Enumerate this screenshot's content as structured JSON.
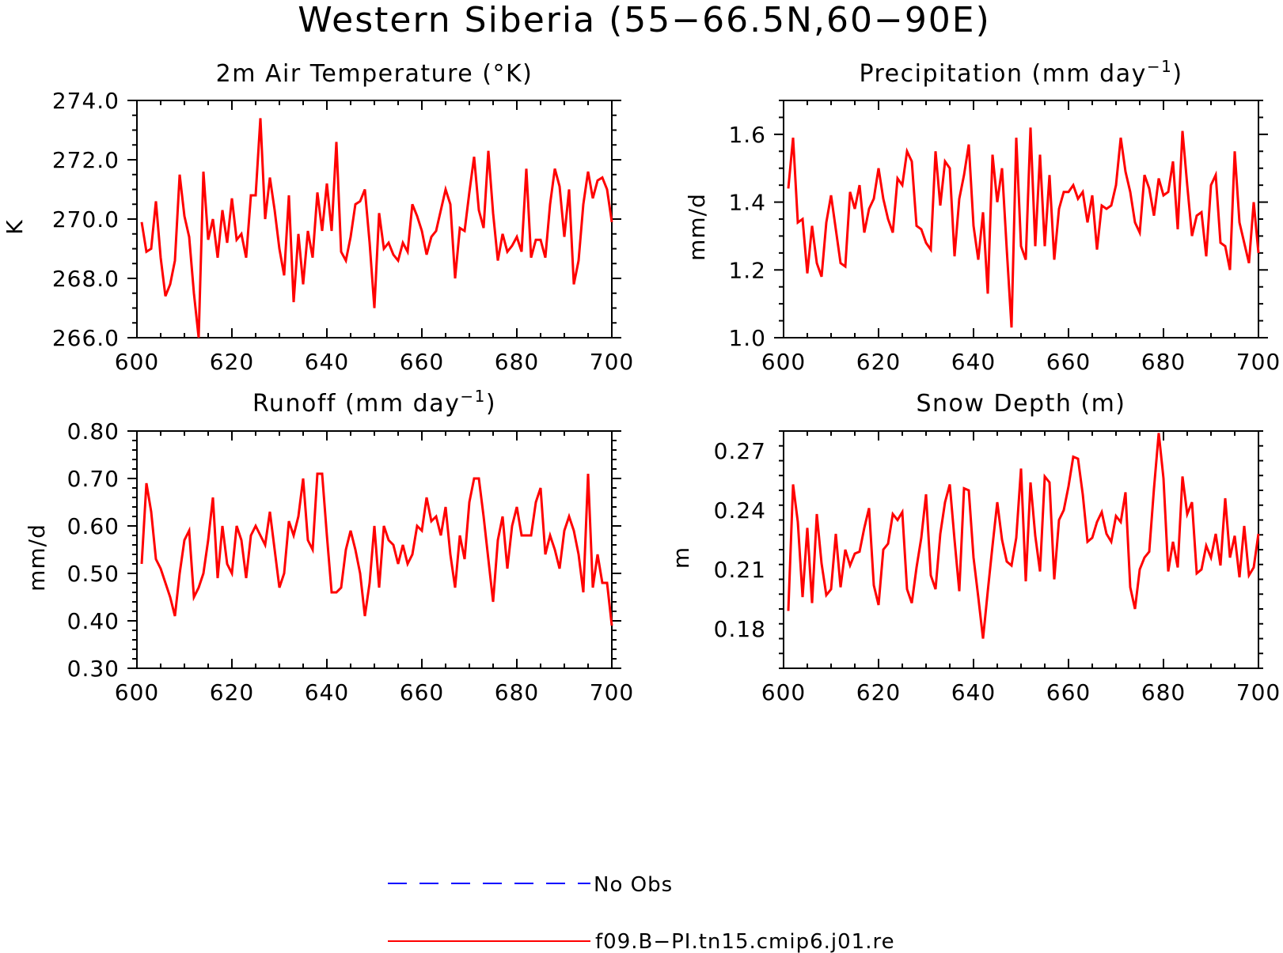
{
  "figure": {
    "title": "Western Siberia (55−66.5N,60−90E)"
  },
  "legend": [
    {
      "label": "No Obs",
      "color": "#0000ff",
      "style": "dashed"
    },
    {
      "label": "f09.B−PI.tn15.cmip6.j01.re",
      "color": "#ff0000",
      "style": "solid"
    }
  ],
  "chart_data": [
    {
      "type": "line",
      "title": "2m Air Temperature (°K)",
      "ylabel": "K",
      "xlabel": "",
      "xlim": [
        600,
        700
      ],
      "ylim": [
        266,
        274
      ],
      "xticks": [
        "600",
        "620",
        "640",
        "660",
        "680",
        "700"
      ],
      "yticks": [
        "266.0",
        "268.0",
        "270.0",
        "272.0",
        "274.0"
      ],
      "x_start": 601,
      "series": [
        {
          "name": "f09.B−PI.tn15.cmip6.j01.re",
          "color": "#ff0000",
          "values": [
            269.9,
            268.9,
            269.0,
            270.6,
            268.7,
            267.4,
            267.8,
            268.6,
            271.5,
            270.1,
            269.4,
            267.5,
            266.0,
            271.6,
            269.3,
            270.0,
            268.7,
            270.3,
            269.2,
            270.7,
            269.3,
            269.5,
            268.7,
            270.8,
            270.8,
            273.4,
            270.0,
            271.4,
            270.3,
            269.0,
            268.1,
            270.8,
            267.2,
            269.5,
            267.8,
            269.6,
            268.7,
            270.9,
            269.6,
            271.2,
            269.6,
            272.6,
            268.9,
            268.6,
            269.4,
            270.5,
            270.6,
            271.0,
            269.2,
            267.0,
            270.2,
            269.0,
            269.2,
            268.8,
            268.6,
            269.2,
            268.9,
            270.5,
            270.1,
            269.6,
            268.8,
            269.4,
            269.6,
            270.3,
            271.0,
            270.5,
            268.0,
            269.7,
            269.6,
            270.9,
            272.1,
            270.3,
            269.7,
            272.3,
            270.2,
            268.6,
            269.5,
            268.9,
            269.1,
            269.4,
            268.9,
            271.7,
            268.7,
            269.3,
            269.3,
            268.7,
            270.5,
            271.7,
            271.1,
            269.4,
            271.0,
            267.8,
            268.6,
            270.5,
            271.6,
            270.7,
            271.3,
            271.4,
            271.0,
            269.9
          ]
        }
      ]
    },
    {
      "type": "line",
      "title": "Precipitation (mm day",
      "title_sup": "−1",
      "title_end": ")",
      "ylabel": "mm/d",
      "xlabel": "",
      "xlim": [
        600,
        700
      ],
      "ylim": [
        1.0,
        1.7
      ],
      "xticks": [
        "600",
        "620",
        "640",
        "660",
        "680",
        "700"
      ],
      "yticks": [
        "1.0",
        "1.2",
        "1.4",
        "1.6"
      ],
      "x_start": 601,
      "series": [
        {
          "name": "f09.B−PI.tn15.cmip6.j01.re",
          "color": "#ff0000",
          "values": [
            1.44,
            1.59,
            1.34,
            1.35,
            1.19,
            1.33,
            1.22,
            1.18,
            1.34,
            1.42,
            1.32,
            1.22,
            1.21,
            1.43,
            1.38,
            1.45,
            1.31,
            1.38,
            1.41,
            1.5,
            1.41,
            1.35,
            1.31,
            1.47,
            1.45,
            1.55,
            1.52,
            1.33,
            1.32,
            1.28,
            1.26,
            1.55,
            1.39,
            1.52,
            1.5,
            1.24,
            1.41,
            1.48,
            1.57,
            1.33,
            1.23,
            1.37,
            1.13,
            1.54,
            1.4,
            1.5,
            1.26,
            1.03,
            1.59,
            1.27,
            1.23,
            1.62,
            1.27,
            1.54,
            1.27,
            1.48,
            1.23,
            1.38,
            1.43,
            1.43,
            1.45,
            1.41,
            1.43,
            1.34,
            1.42,
            1.26,
            1.39,
            1.38,
            1.39,
            1.45,
            1.59,
            1.49,
            1.43,
            1.34,
            1.31,
            1.48,
            1.44,
            1.36,
            1.47,
            1.42,
            1.43,
            1.52,
            1.32,
            1.61,
            1.45,
            1.3,
            1.36,
            1.37,
            1.24,
            1.45,
            1.48,
            1.28,
            1.27,
            1.2,
            1.55,
            1.34,
            1.28,
            1.22,
            1.4,
            1.25
          ]
        }
      ]
    },
    {
      "type": "line",
      "title": "Runoff (mm day",
      "title_sup": "−1",
      "title_end": ")",
      "ylabel": "mm/d",
      "xlabel": "",
      "xlim": [
        600,
        700
      ],
      "ylim": [
        0.3,
        0.8
      ],
      "xticks": [
        "600",
        "620",
        "640",
        "660",
        "680",
        "700"
      ],
      "yticks": [
        "0.30",
        "0.40",
        "0.50",
        "0.60",
        "0.70",
        "0.80"
      ],
      "x_start": 601,
      "series": [
        {
          "name": "f09.B−PI.tn15.cmip6.j01.re",
          "color": "#ff0000",
          "values": [
            0.52,
            0.69,
            0.63,
            0.53,
            0.51,
            0.48,
            0.45,
            0.41,
            0.5,
            0.57,
            0.59,
            0.45,
            0.47,
            0.5,
            0.57,
            0.66,
            0.49,
            0.6,
            0.52,
            0.5,
            0.6,
            0.57,
            0.49,
            0.58,
            0.6,
            0.58,
            0.56,
            0.63,
            0.55,
            0.47,
            0.5,
            0.61,
            0.58,
            0.62,
            0.7,
            0.57,
            0.55,
            0.71,
            0.71,
            0.58,
            0.46,
            0.46,
            0.47,
            0.55,
            0.59,
            0.55,
            0.5,
            0.41,
            0.48,
            0.6,
            0.47,
            0.6,
            0.57,
            0.56,
            0.52,
            0.56,
            0.52,
            0.54,
            0.6,
            0.59,
            0.66,
            0.61,
            0.62,
            0.58,
            0.64,
            0.54,
            0.47,
            0.58,
            0.53,
            0.65,
            0.7,
            0.7,
            0.62,
            0.53,
            0.44,
            0.57,
            0.62,
            0.51,
            0.6,
            0.64,
            0.58,
            0.58,
            0.58,
            0.65,
            0.68,
            0.54,
            0.58,
            0.55,
            0.51,
            0.59,
            0.62,
            0.59,
            0.54,
            0.46,
            0.71,
            0.47,
            0.54,
            0.48,
            0.48,
            0.39
          ]
        }
      ]
    },
    {
      "type": "line",
      "title": "Snow Depth (m)",
      "ylabel": "m",
      "xlabel": "",
      "xlim": [
        600,
        700
      ],
      "ylim": [
        0.16,
        0.28
      ],
      "xticks": [
        "600",
        "620",
        "640",
        "660",
        "680",
        "700"
      ],
      "yticks": [
        "0.18",
        "0.21",
        "0.24",
        "0.27"
      ],
      "x_start": 601,
      "series": [
        {
          "name": "f09.B−PI.tn15.cmip6.j01.re",
          "color": "#ff0000",
          "values": [
            0.189,
            0.253,
            0.234,
            0.196,
            0.231,
            0.193,
            0.238,
            0.213,
            0.197,
            0.2,
            0.228,
            0.201,
            0.22,
            0.212,
            0.218,
            0.219,
            0.231,
            0.241,
            0.202,
            0.192,
            0.22,
            0.223,
            0.238,
            0.235,
            0.239,
            0.2,
            0.193,
            0.211,
            0.226,
            0.248,
            0.207,
            0.2,
            0.228,
            0.244,
            0.253,
            0.225,
            0.199,
            0.251,
            0.25,
            0.216,
            0.196,
            0.175,
            0.199,
            0.222,
            0.244,
            0.225,
            0.214,
            0.212,
            0.226,
            0.261,
            0.204,
            0.254,
            0.227,
            0.209,
            0.257,
            0.254,
            0.205,
            0.235,
            0.24,
            0.252,
            0.267,
            0.266,
            0.248,
            0.224,
            0.226,
            0.234,
            0.239,
            0.228,
            0.224,
            0.237,
            0.234,
            0.249,
            0.201,
            0.19,
            0.21,
            0.216,
            0.219,
            0.251,
            0.279,
            0.256,
            0.209,
            0.224,
            0.211,
            0.257,
            0.238,
            0.244,
            0.208,
            0.21,
            0.222,
            0.216,
            0.228,
            0.212,
            0.246,
            0.216,
            0.227,
            0.206,
            0.232,
            0.207,
            0.211,
            0.228
          ]
        }
      ]
    }
  ]
}
